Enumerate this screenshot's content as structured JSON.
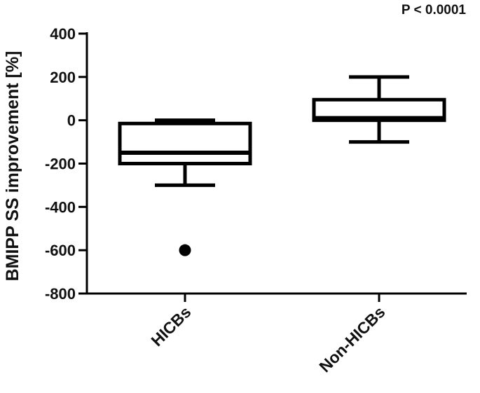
{
  "annotation": "P < 0.0001",
  "chart_data": {
    "type": "box",
    "ylabel": "BMIPP SS improvement [%]",
    "xlabel": "",
    "ylim": [
      -800,
      400
    ],
    "yticks": [
      400,
      200,
      0,
      -200,
      -400,
      -600,
      -800
    ],
    "ytick_labels": [
      "400",
      "200",
      "0",
      "-200",
      "-400",
      "-600",
      "-800"
    ],
    "categories": [
      "HICBs",
      "Non-HICBs"
    ],
    "boxes": [
      {
        "name": "HICBs",
        "whisker_low": -300,
        "q1": -200,
        "median": -150,
        "q3": -15,
        "whisker_high": 0,
        "outliers": [
          -600
        ]
      },
      {
        "name": "Non-HICBs",
        "whisker_low": -100,
        "q1": 0,
        "median": 10,
        "q3": 95,
        "whisker_high": 200,
        "outliers": []
      }
    ],
    "grid": false,
    "legend": "none"
  }
}
